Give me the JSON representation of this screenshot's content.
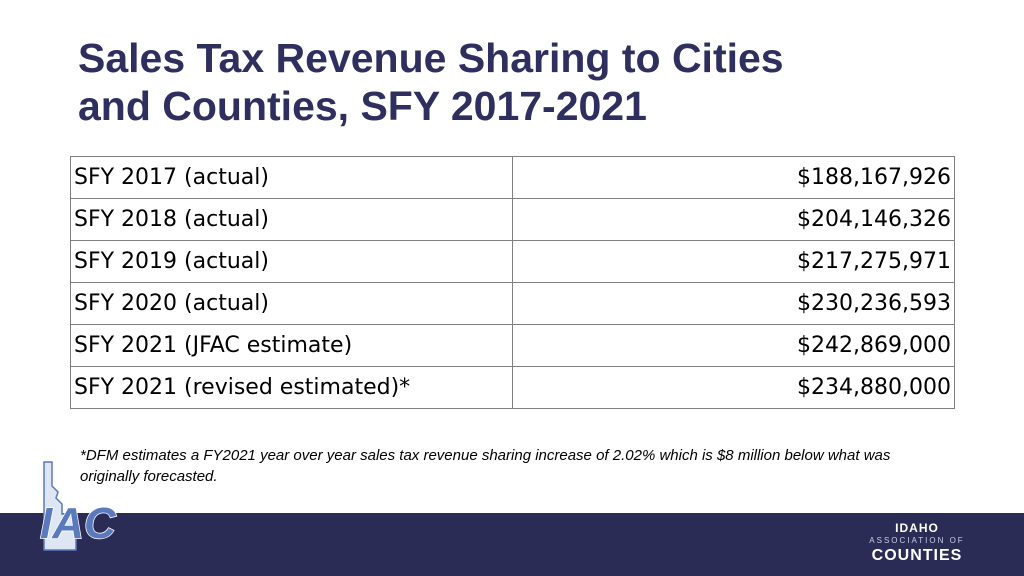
{
  "slide": {
    "title_line1": "Sales Tax Revenue Sharing to Cities",
    "title_line2": "and Counties, SFY 2017-2021",
    "table": {
      "rows": [
        {
          "label": "SFY 2017 (actual)",
          "value": "$188,167,926"
        },
        {
          "label": "SFY 2018 (actual)",
          "value": "$204,146,326"
        },
        {
          "label": "SFY 2019 (actual)",
          "value": "$217,275,971"
        },
        {
          "label": "SFY 2020 (actual)",
          "value": "$230,236,593"
        },
        {
          "label": "SFY 2021 (JFAC estimate)",
          "value": "$242,869,000"
        },
        {
          "label": "SFY 2021 (revised estimated)*",
          "value": "$234,880,000"
        }
      ]
    },
    "footnote": "*DFM estimates a FY2021 year over year sales tax revenue sharing increase of 2.02% which is $8 million below what was originally forecasted."
  },
  "footer": {
    "logo_left_text": "IAC",
    "logo_right_line1": "IDAHO",
    "logo_right_line2": "ASSOCIATION OF",
    "logo_right_line3": "COUNTIES"
  },
  "colors": {
    "title": "#2e2f5f",
    "footer_bar": "#2b2c56",
    "logo_blue": "#5b79bd"
  }
}
